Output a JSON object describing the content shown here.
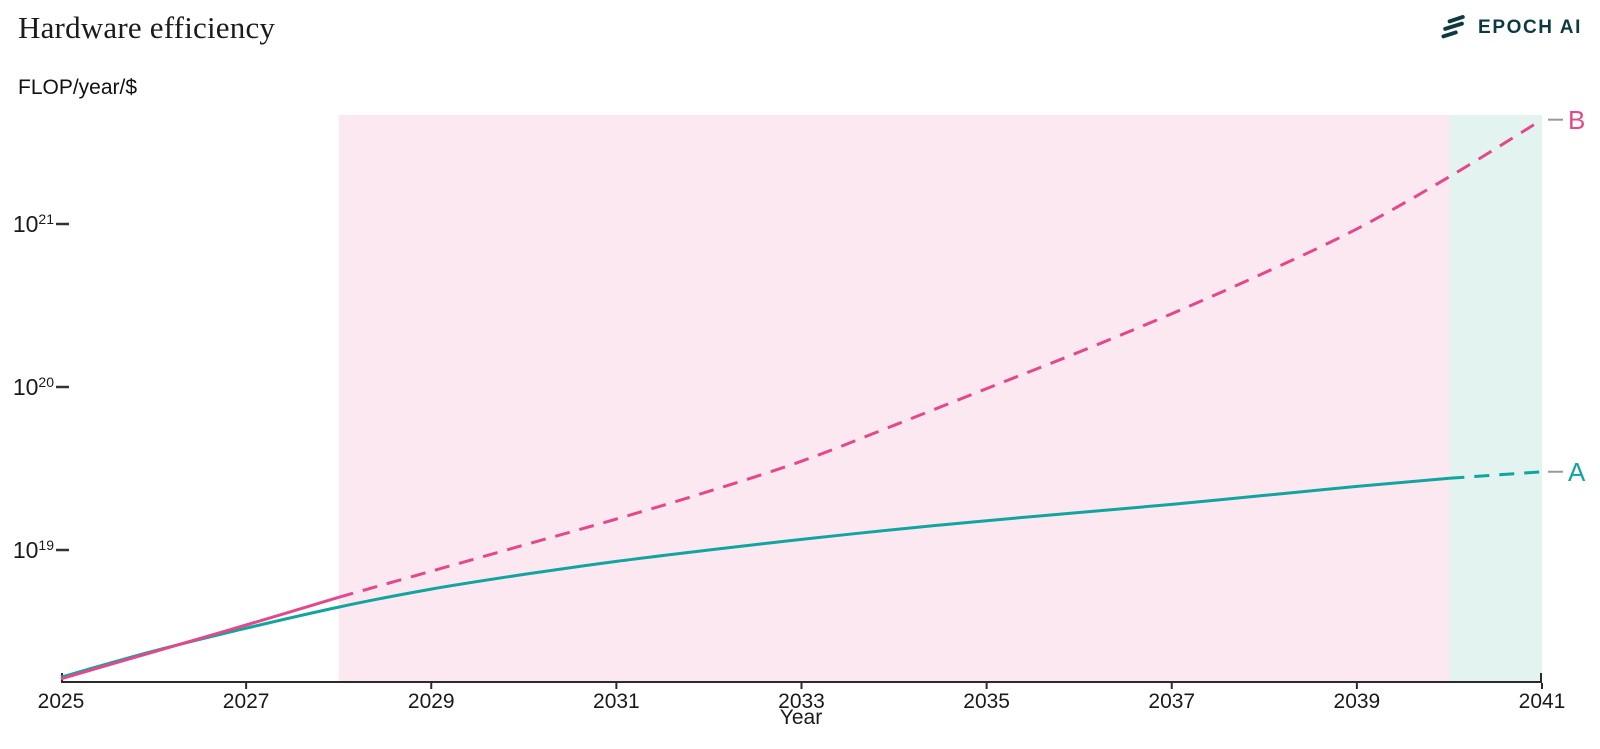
{
  "header": {
    "title": "Hardware efficiency",
    "y_unit_label": "FLOP/year/$",
    "brand": "EPOCH AI"
  },
  "chart_data": {
    "type": "line",
    "title": "Hardware efficiency",
    "ylabel": "FLOP/year/$",
    "xlabel": "Year",
    "y_scale": "log10",
    "xlim": [
      2025,
      2041
    ],
    "ylim_log10": [
      18.19,
      21.67
    ],
    "grid": false,
    "x_tick_years": [
      2025,
      2027,
      2029,
      2031,
      2033,
      2035,
      2037,
      2039,
      2041
    ],
    "x_tick_labels": [
      "2025",
      "2027",
      "2029",
      "2031",
      "2033",
      "2035",
      "2037",
      "2039",
      "2041"
    ],
    "y_ticks": [
      {
        "base": "10",
        "exponent": "19",
        "log10": 19
      },
      {
        "base": "10",
        "exponent": "20",
        "log10": 20
      },
      {
        "base": "10",
        "exponent": "21",
        "log10": 21
      }
    ],
    "years": [
      2025,
      2026,
      2027,
      2028,
      2029,
      2030,
      2031,
      2032,
      2033,
      2034,
      2035,
      2036,
      2037,
      2038,
      2039,
      2040,
      2041
    ],
    "series": [
      {
        "name": "A",
        "color": "#12a5a0",
        "style_solid_until_year": 2040,
        "style_dashed_after": true,
        "log10_values": [
          18.22,
          18.38,
          18.52,
          18.65,
          18.76,
          18.85,
          18.93,
          19.0,
          19.065,
          19.125,
          19.18,
          19.23,
          19.28,
          19.335,
          19.39,
          19.44,
          19.48
        ]
      },
      {
        "name": "B",
        "color": "#e3498a",
        "style_solid_until_year": 2028,
        "style_dashed_after": true,
        "log10_values": [
          18.21,
          18.375,
          18.54,
          18.71,
          18.87,
          19.03,
          19.19,
          19.36,
          19.545,
          19.765,
          19.99,
          20.215,
          20.45,
          20.7,
          20.97,
          21.29,
          21.64
        ]
      }
    ],
    "shaded_regions": [
      {
        "from_year": 2028,
        "to_year": 2040,
        "color": "#fce8f1"
      },
      {
        "from_year": 2040,
        "to_year": 2041,
        "color": "#e2f3f0"
      }
    ],
    "annotation_colors": {
      "axis": "#2b2b2b",
      "tick": "#333333",
      "label_connector": "#999999"
    }
  }
}
